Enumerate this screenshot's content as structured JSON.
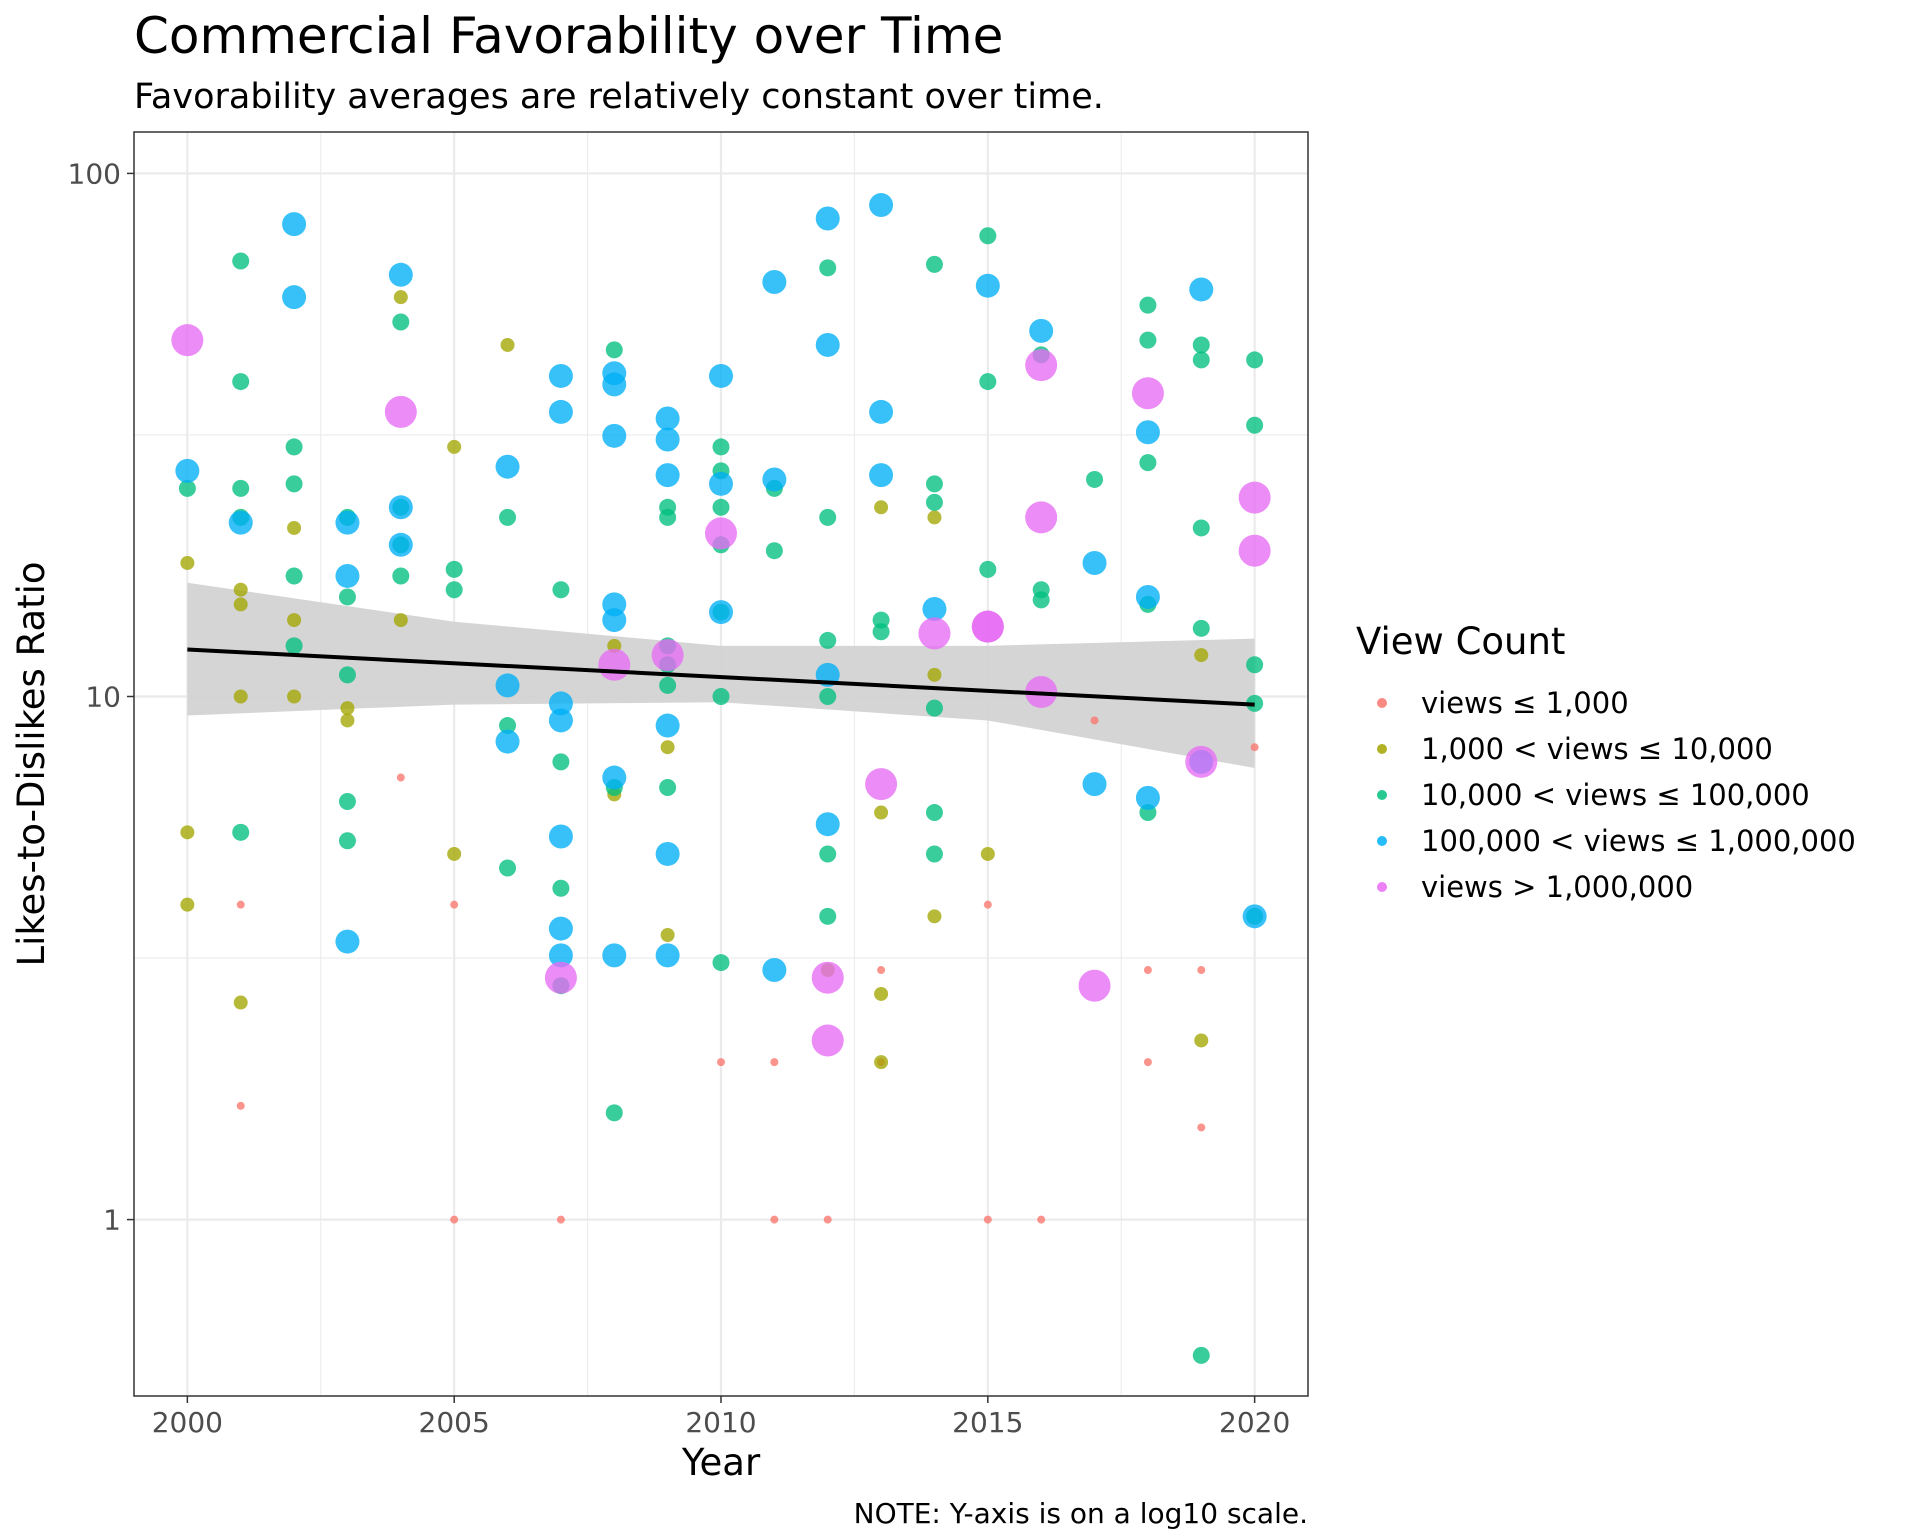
{
  "chart_data": {
    "type": "scatter",
    "title": "Commercial Favorability over Time",
    "subtitle": "Favorability averages are relatively constant over time.",
    "xlabel": "Year",
    "ylabel": "Likes-to-Dislikes Ratio",
    "caption": "NOTE: Y-axis is on a log10 scale.",
    "y_scale": "log10",
    "xlim": [
      1999,
      2021
    ],
    "ylim": [
      0.46,
      120
    ],
    "x_ticks": [
      2000,
      2005,
      2010,
      2015,
      2020
    ],
    "x_tick_labels": [
      "2000",
      "2005",
      "2010",
      "2015",
      "2020"
    ],
    "y_ticks": [
      1,
      10,
      100
    ],
    "y_tick_labels": [
      "1",
      "10",
      "100"
    ],
    "grid": true,
    "legend": {
      "title": "View Count",
      "position": "right"
    },
    "series": [
      {
        "name": "views ≤ 1,000",
        "color": "#F8766D",
        "points": [
          [
            2001,
            4
          ],
          [
            2001,
            1.65
          ],
          [
            2004,
            7
          ],
          [
            2005,
            4
          ],
          [
            2005,
            1
          ],
          [
            2007,
            1
          ],
          [
            2010,
            2
          ],
          [
            2011,
            2
          ],
          [
            2011,
            1
          ],
          [
            2012,
            1
          ],
          [
            2013,
            3
          ],
          [
            2013,
            2
          ],
          [
            2015,
            4
          ],
          [
            2015,
            1
          ],
          [
            2016,
            1
          ],
          [
            2017,
            9
          ],
          [
            2018,
            3
          ],
          [
            2018,
            2
          ],
          [
            2019,
            3
          ],
          [
            2019,
            1.5
          ],
          [
            2020,
            8
          ]
        ]
      },
      {
        "name": "1,000 < views ≤ 10,000",
        "color": "#A3A500",
        "points": [
          [
            2000,
            18
          ],
          [
            2000,
            5.5
          ],
          [
            2000,
            4
          ],
          [
            2001,
            16
          ],
          [
            2001,
            15
          ],
          [
            2001,
            10
          ],
          [
            2001,
            2.6
          ],
          [
            2002,
            21
          ],
          [
            2002,
            14
          ],
          [
            2002,
            10
          ],
          [
            2003,
            9.5
          ],
          [
            2003,
            9
          ],
          [
            2004,
            58
          ],
          [
            2004,
            14
          ],
          [
            2005,
            30
          ],
          [
            2005,
            5
          ],
          [
            2006,
            47
          ],
          [
            2008,
            12.5
          ],
          [
            2008,
            6.5
          ],
          [
            2009,
            8
          ],
          [
            2009,
            3.5
          ],
          [
            2012,
            3
          ],
          [
            2013,
            23
          ],
          [
            2013,
            6
          ],
          [
            2013,
            2.7
          ],
          [
            2013,
            2
          ],
          [
            2014,
            22
          ],
          [
            2014,
            11
          ],
          [
            2014,
            3.8
          ],
          [
            2015,
            5
          ],
          [
            2019,
            12
          ],
          [
            2019,
            2.2
          ]
        ]
      },
      {
        "name": "10,000 < views ≤ 100,000",
        "color": "#00BF7D",
        "points": [
          [
            2000,
            25
          ],
          [
            2001,
            68
          ],
          [
            2001,
            40
          ],
          [
            2001,
            25
          ],
          [
            2001,
            22
          ],
          [
            2001,
            5.5
          ],
          [
            2002,
            30
          ],
          [
            2002,
            25.5
          ],
          [
            2002,
            17
          ],
          [
            2002,
            12.5
          ],
          [
            2003,
            22
          ],
          [
            2003,
            15.5
          ],
          [
            2003,
            11
          ],
          [
            2003,
            6.3
          ],
          [
            2003,
            5.3
          ],
          [
            2004,
            52
          ],
          [
            2004,
            23
          ],
          [
            2004,
            19.5
          ],
          [
            2004,
            17
          ],
          [
            2005,
            17.5
          ],
          [
            2005,
            16
          ],
          [
            2006,
            22
          ],
          [
            2006,
            8.8
          ],
          [
            2006,
            4.7
          ],
          [
            2007,
            16
          ],
          [
            2007,
            7.5
          ],
          [
            2007,
            4.3
          ],
          [
            2007,
            2.8
          ],
          [
            2008,
            46
          ],
          [
            2008,
            6.7
          ],
          [
            2008,
            1.6
          ],
          [
            2009,
            23
          ],
          [
            2009,
            22
          ],
          [
            2009,
            12.5
          ],
          [
            2009,
            11.5
          ],
          [
            2009,
            10.5
          ],
          [
            2009,
            6.7
          ],
          [
            2010,
            30
          ],
          [
            2010,
            27
          ],
          [
            2010,
            23
          ],
          [
            2010,
            19.5
          ],
          [
            2010,
            14.5
          ],
          [
            2010,
            10
          ],
          [
            2010,
            3.1
          ],
          [
            2011,
            25
          ],
          [
            2011,
            19
          ],
          [
            2012,
            66
          ],
          [
            2012,
            22
          ],
          [
            2012,
            12.8
          ],
          [
            2012,
            10
          ],
          [
            2012,
            5
          ],
          [
            2012,
            3.8
          ],
          [
            2013,
            14
          ],
          [
            2013,
            13.3
          ],
          [
            2014,
            67
          ],
          [
            2014,
            25.5
          ],
          [
            2014,
            23.5
          ],
          [
            2014,
            9.5
          ],
          [
            2014,
            6
          ],
          [
            2014,
            5
          ],
          [
            2015,
            76
          ],
          [
            2015,
            40
          ],
          [
            2015,
            17.5
          ],
          [
            2016,
            45
          ],
          [
            2016,
            16
          ],
          [
            2016,
            15.3
          ],
          [
            2017,
            26
          ],
          [
            2018,
            56
          ],
          [
            2018,
            48
          ],
          [
            2018,
            28
          ],
          [
            2018,
            15
          ],
          [
            2018,
            6
          ],
          [
            2019,
            47
          ],
          [
            2019,
            44
          ],
          [
            2019,
            21
          ],
          [
            2019,
            13.5
          ],
          [
            2019,
            0.55
          ],
          [
            2020,
            44
          ],
          [
            2020,
            33
          ],
          [
            2020,
            11.5
          ],
          [
            2020,
            9.7
          ],
          [
            2020,
            3.8
          ]
        ]
      },
      {
        "name": "100,000 < views ≤ 1,000,000",
        "color": "#00B0F6",
        "points": [
          [
            2000,
            27
          ],
          [
            2001,
            21.5
          ],
          [
            2002,
            80
          ],
          [
            2002,
            58
          ],
          [
            2003,
            21.5
          ],
          [
            2003,
            17
          ],
          [
            2003,
            3.4
          ],
          [
            2004,
            64
          ],
          [
            2004,
            23
          ],
          [
            2004,
            19.5
          ],
          [
            2006,
            27.5
          ],
          [
            2006,
            10.5
          ],
          [
            2006,
            8.2
          ],
          [
            2007,
            41
          ],
          [
            2007,
            35
          ],
          [
            2007,
            9.7
          ],
          [
            2007,
            9
          ],
          [
            2007,
            5.4
          ],
          [
            2007,
            3.6
          ],
          [
            2007,
            3.2
          ],
          [
            2008,
            41.5
          ],
          [
            2008,
            39.5
          ],
          [
            2008,
            31.5
          ],
          [
            2008,
            15
          ],
          [
            2008,
            14
          ],
          [
            2008,
            7
          ],
          [
            2008,
            3.2
          ],
          [
            2009,
            34
          ],
          [
            2009,
            31
          ],
          [
            2009,
            26.5
          ],
          [
            2009,
            8.8
          ],
          [
            2009,
            5
          ],
          [
            2009,
            3.2
          ],
          [
            2010,
            41
          ],
          [
            2010,
            25.5
          ],
          [
            2010,
            14.5
          ],
          [
            2011,
            62
          ],
          [
            2011,
            26
          ],
          [
            2011,
            3
          ],
          [
            2012,
            82
          ],
          [
            2012,
            47
          ],
          [
            2012,
            11
          ],
          [
            2012,
            5.7
          ],
          [
            2013,
            87
          ],
          [
            2013,
            35
          ],
          [
            2013,
            26.5
          ],
          [
            2014,
            14.7
          ],
          [
            2015,
            61
          ],
          [
            2016,
            50
          ],
          [
            2017,
            18
          ],
          [
            2017,
            6.8
          ],
          [
            2018,
            32
          ],
          [
            2018,
            15.5
          ],
          [
            2018,
            6.4
          ],
          [
            2019,
            60
          ],
          [
            2019,
            7.5
          ],
          [
            2020,
            3.8
          ]
        ]
      },
      {
        "name": "views > 1,000,000",
        "color": "#E76BF3",
        "points": [
          [
            2000,
            48
          ],
          [
            2004,
            35
          ],
          [
            2007,
            2.9
          ],
          [
            2008,
            11.5
          ],
          [
            2009,
            12
          ],
          [
            2010,
            20.5
          ],
          [
            2012,
            2.9
          ],
          [
            2012,
            2.2
          ],
          [
            2013,
            6.8
          ],
          [
            2014,
            13.2
          ],
          [
            2015,
            13.6
          ],
          [
            2015,
            13.6
          ],
          [
            2016,
            43
          ],
          [
            2016,
            22
          ],
          [
            2016,
            10.2
          ],
          [
            2017,
            2.8
          ],
          [
            2018,
            38
          ],
          [
            2019,
            7.5
          ],
          [
            2020,
            24
          ],
          [
            2020,
            19
          ]
        ]
      }
    ],
    "trend_line": {
      "x": [
        2000,
        2020
      ],
      "y": [
        12.3,
        9.65
      ],
      "color": "#000000",
      "ribbon": {
        "x": [
          2000,
          2005,
          2010,
          2015,
          2020
        ],
        "lower": [
          9.2,
          9.65,
          9.75,
          9.0,
          7.3
        ],
        "upper": [
          16.5,
          13.9,
          12.5,
          12.5,
          12.9
        ],
        "color": "#d3d3d3"
      }
    }
  }
}
